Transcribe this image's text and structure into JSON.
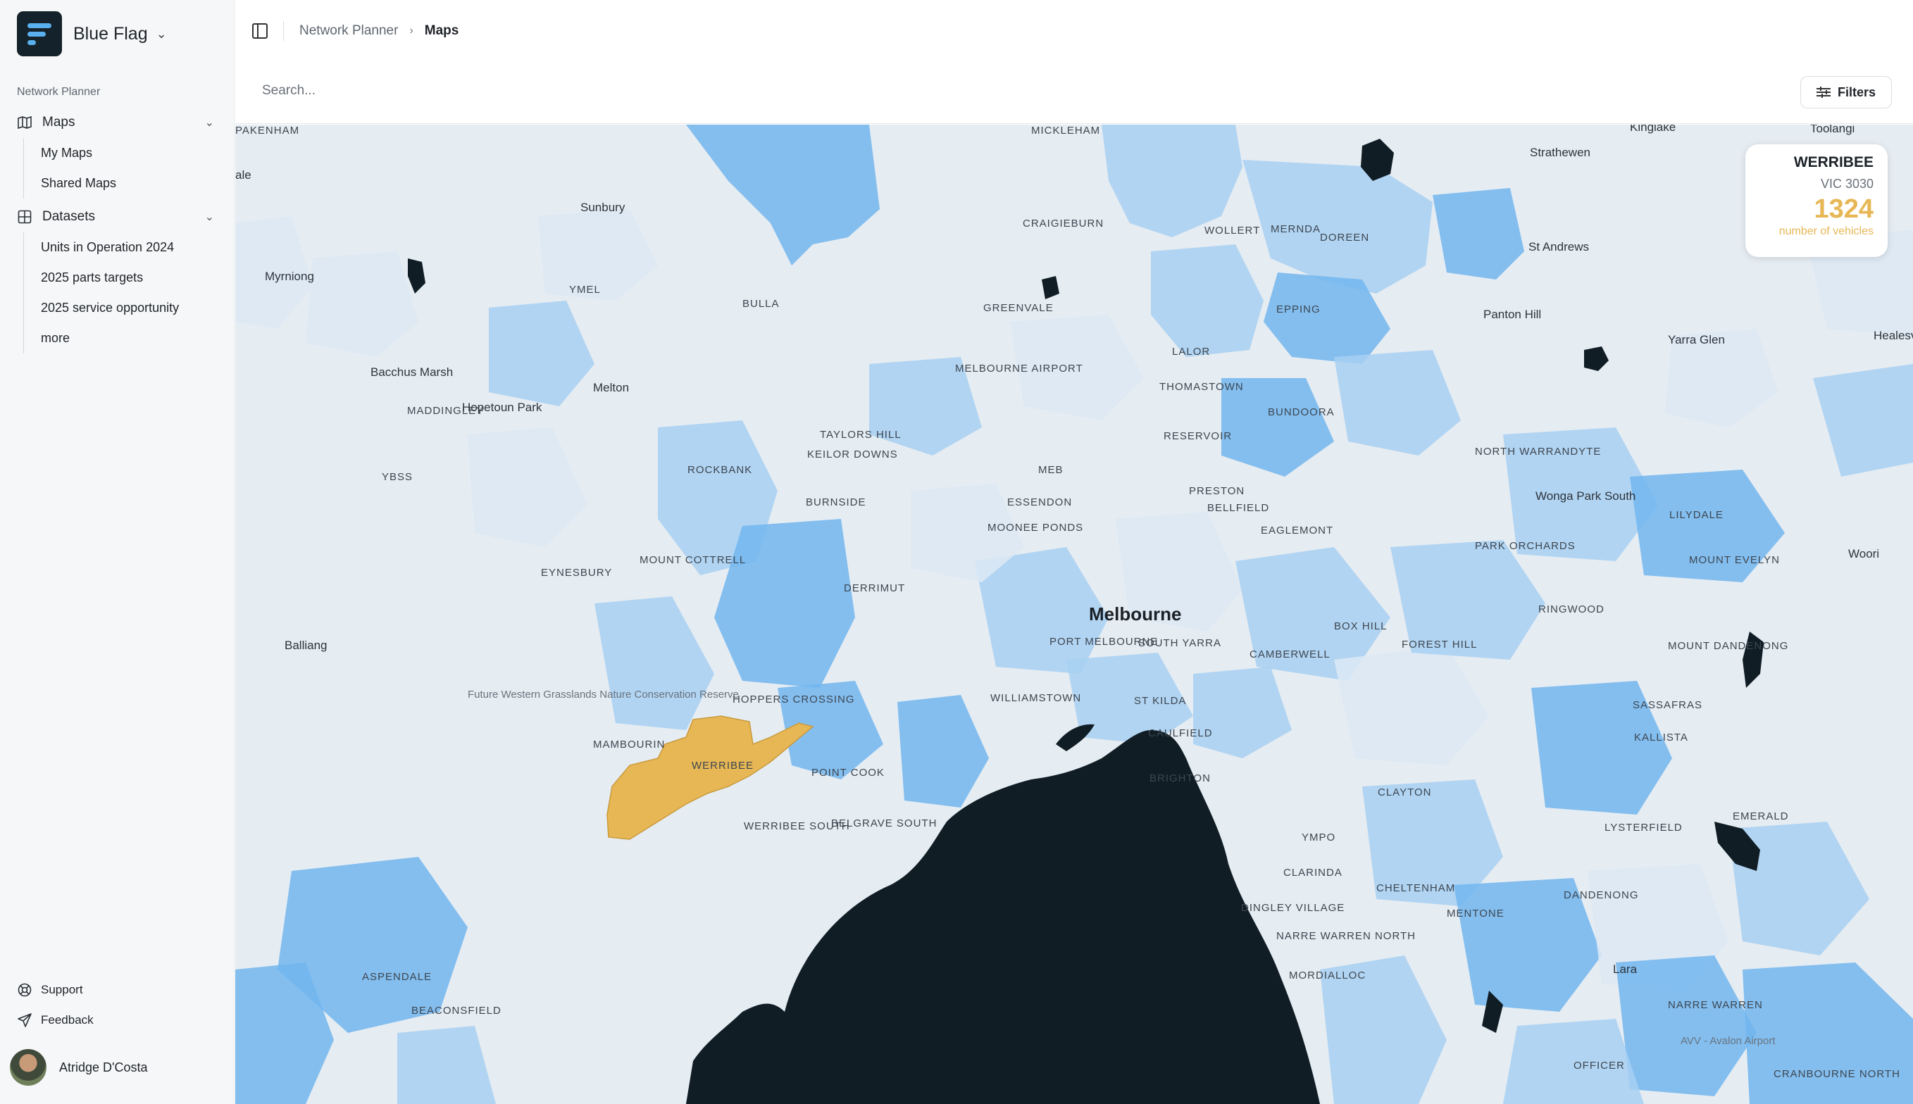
{
  "brand": {
    "name": "Blue Flag",
    "logo_icon": "brand-logo-icon"
  },
  "sidebar": {
    "section_label": "Network Planner",
    "groups": [
      {
        "label": "Maps",
        "icon": "map-icon",
        "expanded": true,
        "items": [
          {
            "label": "My Maps"
          },
          {
            "label": "Shared Maps"
          }
        ]
      },
      {
        "label": "Datasets",
        "icon": "grid-icon",
        "expanded": true,
        "items": [
          {
            "label": "Units in Operation 2024"
          },
          {
            "label": "2025 parts targets"
          },
          {
            "label": "2025 service opportunity"
          },
          {
            "label": "more"
          }
        ]
      }
    ],
    "footer": [
      {
        "label": "Support",
        "icon": "support-icon"
      },
      {
        "label": "Feedback",
        "icon": "send-icon"
      }
    ],
    "user": {
      "name": "Atridge D'Costa"
    }
  },
  "header": {
    "breadcrumb": [
      {
        "label": "Network Planner"
      },
      {
        "label": "Maps"
      }
    ]
  },
  "search": {
    "placeholder": "Search...",
    "value": ""
  },
  "filters": {
    "label": "Filters",
    "icon": "sliders-icon"
  },
  "map": {
    "selected_region": {
      "name": "WERRIBEE",
      "postcode": "VIC 3030",
      "value": "1324",
      "metric": "number of vehicles",
      "color": "#e7b755"
    },
    "colors": {
      "water": "#101d25",
      "light": "#dde9f4",
      "mid": "#a8d0f2",
      "strong": "#72b6ee",
      "highlight": "#e7b755"
    },
    "labels": [
      {
        "text": "MICKLEHAM",
        "kind": "suburb"
      },
      {
        "text": "Kinglake",
        "kind": "town"
      },
      {
        "text": "Toolangi",
        "kind": "town"
      },
      {
        "text": "Strathewen",
        "kind": "town"
      },
      {
        "text": "ale",
        "kind": "town"
      },
      {
        "text": "Sunbury",
        "kind": "town"
      },
      {
        "text": "CRAIGIEBURN",
        "kind": "suburb"
      },
      {
        "text": "WOLLERT",
        "kind": "suburb"
      },
      {
        "text": "MERNDA",
        "kind": "suburb"
      },
      {
        "text": "DOREEN",
        "kind": "suburb"
      },
      {
        "text": "St Andrews",
        "kind": "town"
      },
      {
        "text": "Myrniong",
        "kind": "town"
      },
      {
        "text": "YMEL",
        "kind": "suburb"
      },
      {
        "text": "BULLA",
        "kind": "suburb"
      },
      {
        "text": "GREENVALE",
        "kind": "suburb"
      },
      {
        "text": "EPPING",
        "kind": "suburb"
      },
      {
        "text": "Panton Hill",
        "kind": "town"
      },
      {
        "text": "Yarra Glen",
        "kind": "town"
      },
      {
        "text": "Healesvi",
        "kind": "town"
      },
      {
        "text": "LALOR",
        "kind": "suburb"
      },
      {
        "text": "Bacchus Marsh",
        "kind": "town"
      },
      {
        "text": "MELBOURNE AIRPORT",
        "kind": "suburb"
      },
      {
        "text": "Melton",
        "kind": "town"
      },
      {
        "text": "THOMASTOWN",
        "kind": "suburb"
      },
      {
        "text": "Hopetoun Park",
        "kind": "town"
      },
      {
        "text": "MADDINGLEY",
        "kind": "suburb"
      },
      {
        "text": "BUNDOORA",
        "kind": "suburb"
      },
      {
        "text": "TAYLORS HILL",
        "kind": "suburb"
      },
      {
        "text": "RESERVOIR",
        "kind": "suburb"
      },
      {
        "text": "KEILOR DOWNS",
        "kind": "suburb"
      },
      {
        "text": "NORTH WARRANDYTE",
        "kind": "suburb"
      },
      {
        "text": "ROCKBANK",
        "kind": "suburb"
      },
      {
        "text": "MEB",
        "kind": "suburb"
      },
      {
        "text": "YBSS",
        "kind": "suburb"
      },
      {
        "text": "PRESTON",
        "kind": "suburb"
      },
      {
        "text": "Wonga Park South",
        "kind": "town"
      },
      {
        "text": "BURNSIDE",
        "kind": "suburb"
      },
      {
        "text": "ESSENDON",
        "kind": "suburb"
      },
      {
        "text": "BELLFIELD",
        "kind": "suburb"
      },
      {
        "text": "LILYDALE",
        "kind": "suburb"
      },
      {
        "text": "MOONEE PONDS",
        "kind": "suburb"
      },
      {
        "text": "EAGLEMONT",
        "kind": "suburb"
      },
      {
        "text": "MOUNT COTTRELL",
        "kind": "suburb"
      },
      {
        "text": "PARK ORCHARDS",
        "kind": "suburb"
      },
      {
        "text": "Woori",
        "kind": "town"
      },
      {
        "text": "EYNESBURY",
        "kind": "suburb"
      },
      {
        "text": "MOUNT EVELYN",
        "kind": "suburb"
      },
      {
        "text": "DERRIMUT",
        "kind": "suburb"
      },
      {
        "text": "RINGWOOD",
        "kind": "suburb"
      },
      {
        "text": "Melbourne",
        "kind": "city"
      },
      {
        "text": "BOX HILL",
        "kind": "suburb"
      },
      {
        "text": "Balliang",
        "kind": "town"
      },
      {
        "text": "PORT MELBOURNE",
        "kind": "suburb"
      },
      {
        "text": "SOUTH YARRA",
        "kind": "suburb"
      },
      {
        "text": "CAMBERWELL",
        "kind": "suburb"
      },
      {
        "text": "FOREST HILL",
        "kind": "suburb"
      },
      {
        "text": "MOUNT DANDENONG",
        "kind": "suburb"
      },
      {
        "text": "Future Western Grasslands Nature Conservation Reserve",
        "kind": "park"
      },
      {
        "text": "HOPPERS CROSSING",
        "kind": "suburb"
      },
      {
        "text": "WILLIAMSTOWN",
        "kind": "suburb"
      },
      {
        "text": "ST KILDA",
        "kind": "suburb"
      },
      {
        "text": "SASSAFRAS",
        "kind": "suburb"
      },
      {
        "text": "MAMBOURIN",
        "kind": "suburb"
      },
      {
        "text": "CAULFIELD",
        "kind": "suburb"
      },
      {
        "text": "KALLISTA",
        "kind": "suburb"
      },
      {
        "text": "WERRIBEE",
        "kind": "suburb"
      },
      {
        "text": "POINT COOK",
        "kind": "suburb"
      },
      {
        "text": "BRIGHTON",
        "kind": "suburb"
      },
      {
        "text": "CLAYTON",
        "kind": "suburb"
      },
      {
        "text": "EMERALD",
        "kind": "suburb"
      },
      {
        "text": "WERRIBEE SOUTH",
        "kind": "suburb"
      },
      {
        "text": "LYSTERFIELD",
        "kind": "suburb"
      },
      {
        "text": "BELGRAVE SOUTH",
        "kind": "suburb"
      },
      {
        "text": "YMPO",
        "kind": "suburb"
      },
      {
        "text": "CLARINDA",
        "kind": "suburb"
      },
      {
        "text": "CHELTENHAM",
        "kind": "suburb"
      },
      {
        "text": "DINGLEY VILLAGE",
        "kind": "suburb"
      },
      {
        "text": "MENTONE",
        "kind": "suburb"
      },
      {
        "text": "DANDENONG",
        "kind": "suburb"
      },
      {
        "text": "NARRE WARREN NORTH",
        "kind": "suburb"
      },
      {
        "text": "MORDIALLOC",
        "kind": "suburb"
      },
      {
        "text": "ASPENDALE",
        "kind": "suburb"
      },
      {
        "text": "Lara",
        "kind": "town"
      },
      {
        "text": "NARRE WARREN",
        "kind": "suburb"
      },
      {
        "text": "BEACONSFIELD",
        "kind": "suburb"
      },
      {
        "text": "AVV - Avalon Airport",
        "kind": "park"
      },
      {
        "text": "OFFICER",
        "kind": "suburb"
      },
      {
        "text": "CRANBOURNE NORTH",
        "kind": "suburb"
      },
      {
        "text": "PAKENHAM",
        "kind": "suburb"
      }
    ]
  }
}
